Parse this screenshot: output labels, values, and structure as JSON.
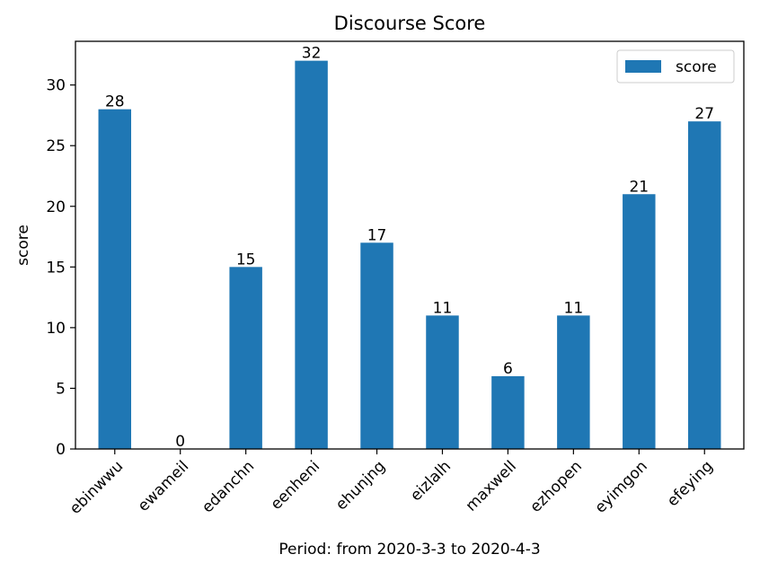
{
  "chart_data": {
    "type": "bar",
    "title": "Discourse Score",
    "xlabel": "Period: from 2020-3-3 to 2020-4-3",
    "ylabel": "score",
    "categories": [
      "ebinwwu",
      "ewameil",
      "edanchn",
      "eenheni",
      "ehunjng",
      "eizlalh",
      "maxwell",
      "ezhopen",
      "eyimgon",
      "efeying"
    ],
    "series": [
      {
        "name": "score",
        "values": [
          28,
          0,
          15,
          32,
          17,
          11,
          6,
          11,
          21,
          27
        ]
      }
    ],
    "ylim": [
      0,
      33.6
    ],
    "yticks": [
      0,
      5,
      10,
      15,
      20,
      25,
      30
    ],
    "grid": false,
    "legend_position": "top-right",
    "bar_color": "#1f77b4"
  }
}
